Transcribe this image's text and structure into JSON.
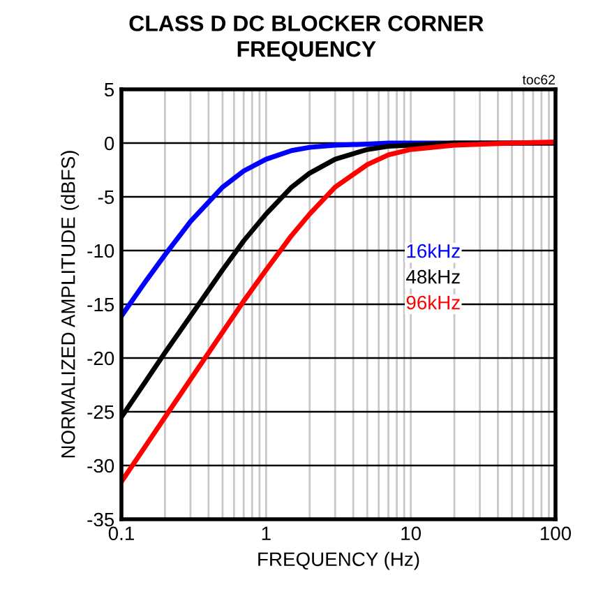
{
  "chart_data": {
    "type": "line",
    "title": "CLASS D DC BLOCKER CORNER\nFREQUENCY",
    "xlabel": "FREQUENCY (Hz)",
    "ylabel": "NORMALIZED AMPLITUDE (dBFS)",
    "annotations": [
      "toc62"
    ],
    "log": "x",
    "xlim": [
      0.1,
      100
    ],
    "xticks": [
      0.1,
      1,
      10,
      100
    ],
    "ylim": [
      -35,
      5
    ],
    "yticks": [
      -35,
      -30,
      -25,
      -20,
      -15,
      -10,
      -5,
      0,
      5
    ],
    "grid": true,
    "legend": false,
    "marker": "none",
    "line_style": "solid",
    "x": [
      0.1,
      0.15,
      0.2,
      0.3,
      0.5,
      0.7,
      1,
      1.5,
      2,
      3,
      5,
      7,
      10,
      20,
      50,
      100
    ],
    "series": [
      {
        "name": "16kHz",
        "color": "#0000ff",
        "values": [
          -16.1,
          -12.7,
          -10.4,
          -7.3,
          -4.1,
          -2.6,
          -1.5,
          -0.7,
          -0.4,
          -0.2,
          -0.1,
          0,
          0,
          0,
          0,
          0
        ]
      },
      {
        "name": "48kHz",
        "color": "#000000",
        "values": [
          -25.5,
          -22.0,
          -19.5,
          -16.1,
          -11.8,
          -9.1,
          -6.6,
          -4.1,
          -2.8,
          -1.5,
          -0.6,
          -0.3,
          -0.2,
          0,
          0,
          0
        ]
      },
      {
        "name": "96kHz",
        "color": "#ff0000",
        "values": [
          -31.5,
          -28.0,
          -25.5,
          -22.0,
          -17.6,
          -14.7,
          -11.8,
          -8.6,
          -6.6,
          -4.1,
          -2.0,
          -1.1,
          -0.6,
          -0.2,
          0,
          0.1
        ]
      }
    ]
  }
}
